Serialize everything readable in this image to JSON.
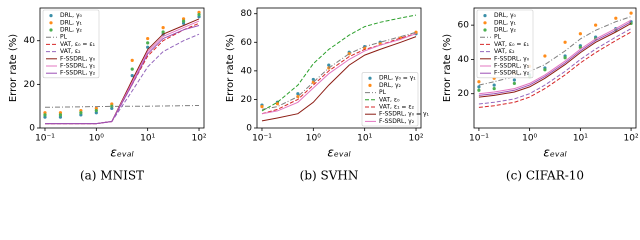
{
  "chart_data": [
    {
      "type": "line",
      "caption": "(a)  MNIST",
      "y_label": "Error rate (%)",
      "x_label": "εₑᵥₐₗ",
      "log_x": true,
      "legend": "upper left",
      "x": [
        0.1,
        0.2,
        0.5,
        1,
        2,
        5,
        10,
        20,
        50,
        100
      ],
      "xlim": [
        0.08,
        125
      ],
      "ylim": [
        0,
        55
      ],
      "xticks": [
        {
          "value": 0.1,
          "label": "10⁻¹"
        },
        {
          "value": 1,
          "label": "10⁰"
        },
        {
          "value": 10,
          "label": "10¹"
        },
        {
          "value": 100,
          "label": "10²"
        }
      ],
      "yticks": [
        0,
        20,
        40
      ],
      "series": [
        {
          "name": "DRL, γ₀",
          "style": "scatter",
          "color": "#3b8fa8",
          "values": [
            5,
            5,
            6,
            7,
            9,
            24,
            37,
            43,
            48,
            51
          ]
        },
        {
          "name": "DRL, γ₁",
          "style": "scatter",
          "color": "#ff8c1a",
          "values": [
            7,
            7,
            8,
            9,
            11,
            31,
            41,
            46,
            50,
            53
          ]
        },
        {
          "name": "DRL, γ₂",
          "style": "scatter",
          "color": "#4caf50",
          "values": [
            6,
            6,
            7,
            8,
            10,
            27,
            39,
            44,
            49,
            52
          ]
        },
        {
          "name": "PL",
          "style": "dashdot",
          "color": "#7f7f7f",
          "values": [
            9.5,
            9.6,
            9.7,
            9.8,
            9.9,
            10,
            10,
            10.1,
            10.2,
            10.3
          ]
        },
        {
          "name": "VAT, ε₀ = ε₁",
          "style": "dashed",
          "color": "#d62728",
          "values": [
            2,
            2,
            2,
            2,
            3,
            20,
            33,
            40,
            45,
            48
          ]
        },
        {
          "name": "VAT, ε₂",
          "style": "dashed",
          "color": "#9467bd",
          "values": [
            2,
            2,
            2,
            2,
            3,
            17,
            28,
            35,
            40,
            43
          ]
        },
        {
          "name": "F-SSDRL, γ₀",
          "style": "solid",
          "color": "#8c1c13",
          "values": [
            2,
            2,
            2,
            2,
            3,
            22,
            36,
            43,
            47,
            50
          ]
        },
        {
          "name": "F-SSDRL, γ₁",
          "style": "solid",
          "color": "#e377c2",
          "values": [
            2,
            2,
            2,
            2,
            3,
            21,
            35,
            42,
            46,
            49
          ]
        },
        {
          "name": "F-SSDRL, γ₂",
          "style": "solid",
          "color": "#9b4fb5",
          "values": [
            2,
            2,
            2,
            2,
            3,
            20,
            34,
            41,
            45,
            47
          ]
        }
      ]
    },
    {
      "type": "line",
      "caption": "(b)  SVHN",
      "y_label": "Error rate (%)",
      "x_label": "εₑᵥₐₗ",
      "log_x": true,
      "legend": "lower right",
      "x": [
        0.1,
        0.2,
        0.5,
        1,
        2,
        5,
        10,
        20,
        50,
        100
      ],
      "xlim": [
        0.08,
        125
      ],
      "ylim": [
        0,
        84
      ],
      "xticks": [
        {
          "value": 0.1,
          "label": "10⁻¹"
        },
        {
          "value": 1,
          "label": "10⁰"
        },
        {
          "value": 10,
          "label": "10¹"
        },
        {
          "value": 100,
          "label": "10²"
        }
      ],
      "yticks": [
        0,
        20,
        40,
        60,
        80
      ],
      "series": [
        {
          "name": "DRL, γ₀ = γ₁",
          "style": "scatter",
          "color": "#3b8fa8",
          "values": [
            16,
            18,
            24,
            34,
            44,
            53,
            57,
            60,
            63,
            66
          ]
        },
        {
          "name": "DRL, γ₂",
          "style": "scatter",
          "color": "#ff8c1a",
          "values": [
            15,
            17,
            22,
            32,
            42,
            52,
            56,
            59,
            63,
            67
          ]
        },
        {
          "name": "PL",
          "style": "dashdot",
          "color": "#7f7f7f",
          "values": [
            13,
            15,
            22,
            32,
            42,
            52,
            57,
            60,
            64,
            67
          ]
        },
        {
          "name": "VAT, ε₀",
          "style": "dashed",
          "color": "#2ca02c",
          "values": [
            12,
            18,
            30,
            45,
            55,
            65,
            71,
            74,
            77,
            79
          ]
        },
        {
          "name": "VAT, ε₁ = ε₂",
          "style": "dashed",
          "color": "#d62728",
          "values": [
            10,
            13,
            20,
            30,
            40,
            50,
            55,
            58,
            63,
            66
          ]
        },
        {
          "name": "F-SSDRL, γ₀ = γ₁",
          "style": "solid",
          "color": "#8c1c13",
          "values": [
            5,
            7,
            10,
            18,
            30,
            44,
            51,
            55,
            60,
            64
          ]
        },
        {
          "name": "F-SSDRL, γ₂",
          "style": "solid",
          "color": "#e377c2",
          "values": [
            10,
            12,
            18,
            28,
            38,
            48,
            54,
            58,
            62,
            66
          ]
        }
      ]
    },
    {
      "type": "line",
      "caption": "(c)  CIFAR-10",
      "y_label": "Error rate (%)",
      "x_label": "εₑᵥₐₗ",
      "log_x": true,
      "legend": "upper left",
      "x": [
        0.1,
        0.2,
        0.5,
        1,
        2,
        5,
        10,
        20,
        50,
        100
      ],
      "xlim": [
        0.08,
        125
      ],
      "ylim": [
        0,
        70
      ],
      "xticks": [
        {
          "value": 0.1,
          "label": "10⁻¹"
        },
        {
          "value": 1,
          "label": "10⁰"
        },
        {
          "value": 10,
          "label": "10¹"
        },
        {
          "value": 100,
          "label": "10²"
        }
      ],
      "yticks": [
        20,
        40,
        60
      ],
      "series": [
        {
          "name": "DRL, γ₀",
          "style": "scatter",
          "color": "#3b8fa8",
          "values": [
            24,
            25,
            28,
            31,
            35,
            42,
            48,
            53,
            58,
            62
          ]
        },
        {
          "name": "DRL, γ₁",
          "style": "scatter",
          "color": "#ff8c1a",
          "values": [
            27,
            29,
            32,
            36,
            42,
            50,
            55,
            60,
            64,
            67
          ]
        },
        {
          "name": "DRL, γ₂",
          "style": "scatter",
          "color": "#4caf50",
          "values": [
            22,
            23,
            26,
            30,
            34,
            41,
            47,
            52,
            57,
            61
          ]
        },
        {
          "name": "PL",
          "style": "dashdot",
          "color": "#7f7f7f",
          "values": [
            25,
            27,
            30,
            33,
            37,
            45,
            52,
            57,
            62,
            65
          ]
        },
        {
          "name": "VAT, ε₀ = ε₁",
          "style": "dashed",
          "color": "#d62728",
          "values": [
            12,
            13,
            15,
            18,
            23,
            31,
            38,
            44,
            51,
            56
          ]
        },
        {
          "name": "VAT, ε₂",
          "style": "dashed",
          "color": "#9467bd",
          "values": [
            14,
            15,
            17,
            20,
            25,
            33,
            40,
            46,
            53,
            58
          ]
        },
        {
          "name": "F-SSDRL, γ₀",
          "style": "solid",
          "color": "#8c1c13",
          "values": [
            18,
            19,
            21,
            24,
            29,
            37,
            44,
            50,
            56,
            61
          ]
        },
        {
          "name": "F-SSDRL, γ₁",
          "style": "solid",
          "color": "#e377c2",
          "values": [
            20,
            21,
            23,
            26,
            31,
            39,
            46,
            52,
            58,
            63
          ]
        },
        {
          "name": "F-SSDRL, γ₂",
          "style": "solid",
          "color": "#9b4fb5",
          "values": [
            19,
            20,
            22,
            25,
            30,
            38,
            45,
            51,
            57,
            62
          ]
        }
      ]
    }
  ]
}
